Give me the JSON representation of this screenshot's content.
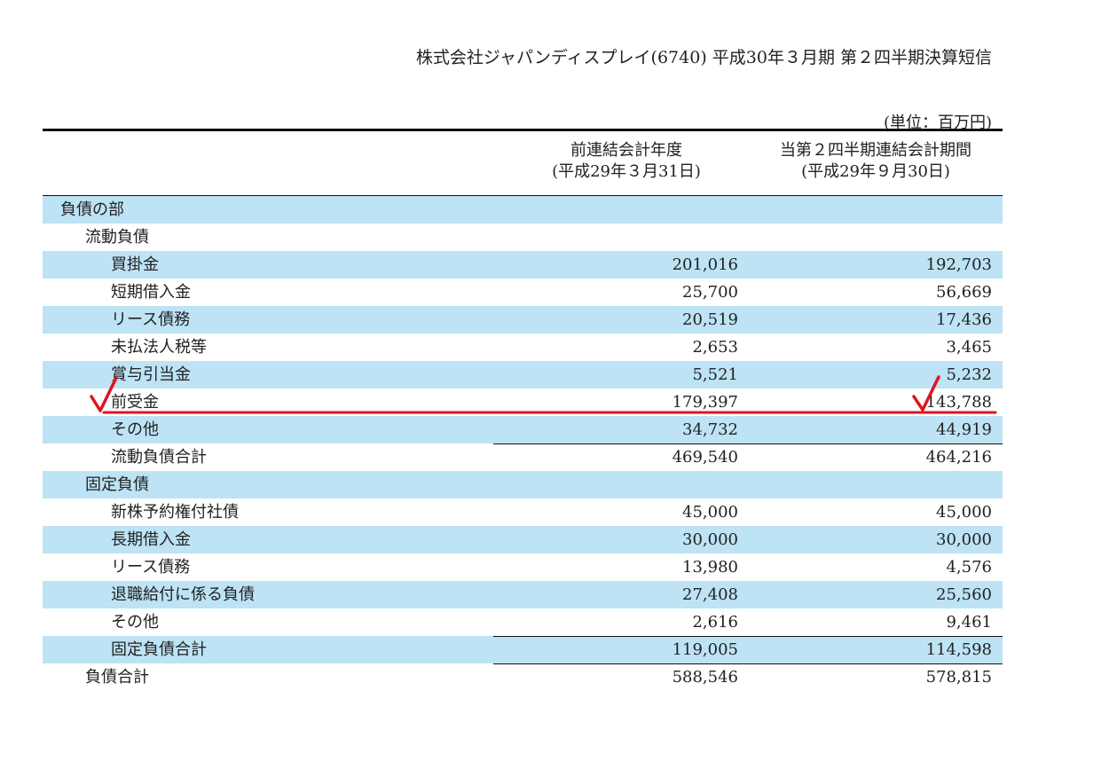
{
  "document": {
    "header_title": "株式会社ジャパンディスプレイ(6740)  平成30年３月期 第２四半期決算短信",
    "unit": "(単位：百万円)"
  },
  "columns": [
    {
      "line1": "前連結会計年度",
      "line2": "(平成29年３月31日)"
    },
    {
      "line1": "当第２四半期連結会計期間",
      "line2": "(平成29年９月30日)"
    }
  ],
  "rows": [
    {
      "label": "負債の部",
      "v1": "",
      "v2": ""
    },
    {
      "label": "流動負債",
      "v1": "",
      "v2": ""
    },
    {
      "label": "買掛金",
      "v1": "201,016",
      "v2": "192,703"
    },
    {
      "label": "短期借入金",
      "v1": "25,700",
      "v2": "56,669"
    },
    {
      "label": "リース債務",
      "v1": "20,519",
      "v2": "17,436"
    },
    {
      "label": "未払法人税等",
      "v1": "2,653",
      "v2": "3,465"
    },
    {
      "label": "賞与引当金",
      "v1": "5,521",
      "v2": "5,232"
    },
    {
      "label": "前受金",
      "v1": "179,397",
      "v2": "143,788"
    },
    {
      "label": "その他",
      "v1": "34,732",
      "v2": "44,919"
    },
    {
      "label": "流動負債合計",
      "v1": "469,540",
      "v2": "464,216"
    },
    {
      "label": "固定負債",
      "v1": "",
      "v2": ""
    },
    {
      "label": "新株予約権付社債",
      "v1": "45,000",
      "v2": "45,000"
    },
    {
      "label": "長期借入金",
      "v1": "30,000",
      "v2": "30,000"
    },
    {
      "label": "リース債務",
      "v1": "13,980",
      "v2": "4,576"
    },
    {
      "label": "退職給付に係る負債",
      "v1": "27,408",
      "v2": "25,560"
    },
    {
      "label": "その他",
      "v1": "2,616",
      "v2": "9,461"
    },
    {
      "label": "固定負債合計",
      "v1": "119,005",
      "v2": "114,598"
    },
    {
      "label": "負債合計",
      "v1": "588,546",
      "v2": "578,815"
    }
  ],
  "colors": {
    "row_shade": "#bde3f5",
    "annotation_red": "#e0141e"
  }
}
